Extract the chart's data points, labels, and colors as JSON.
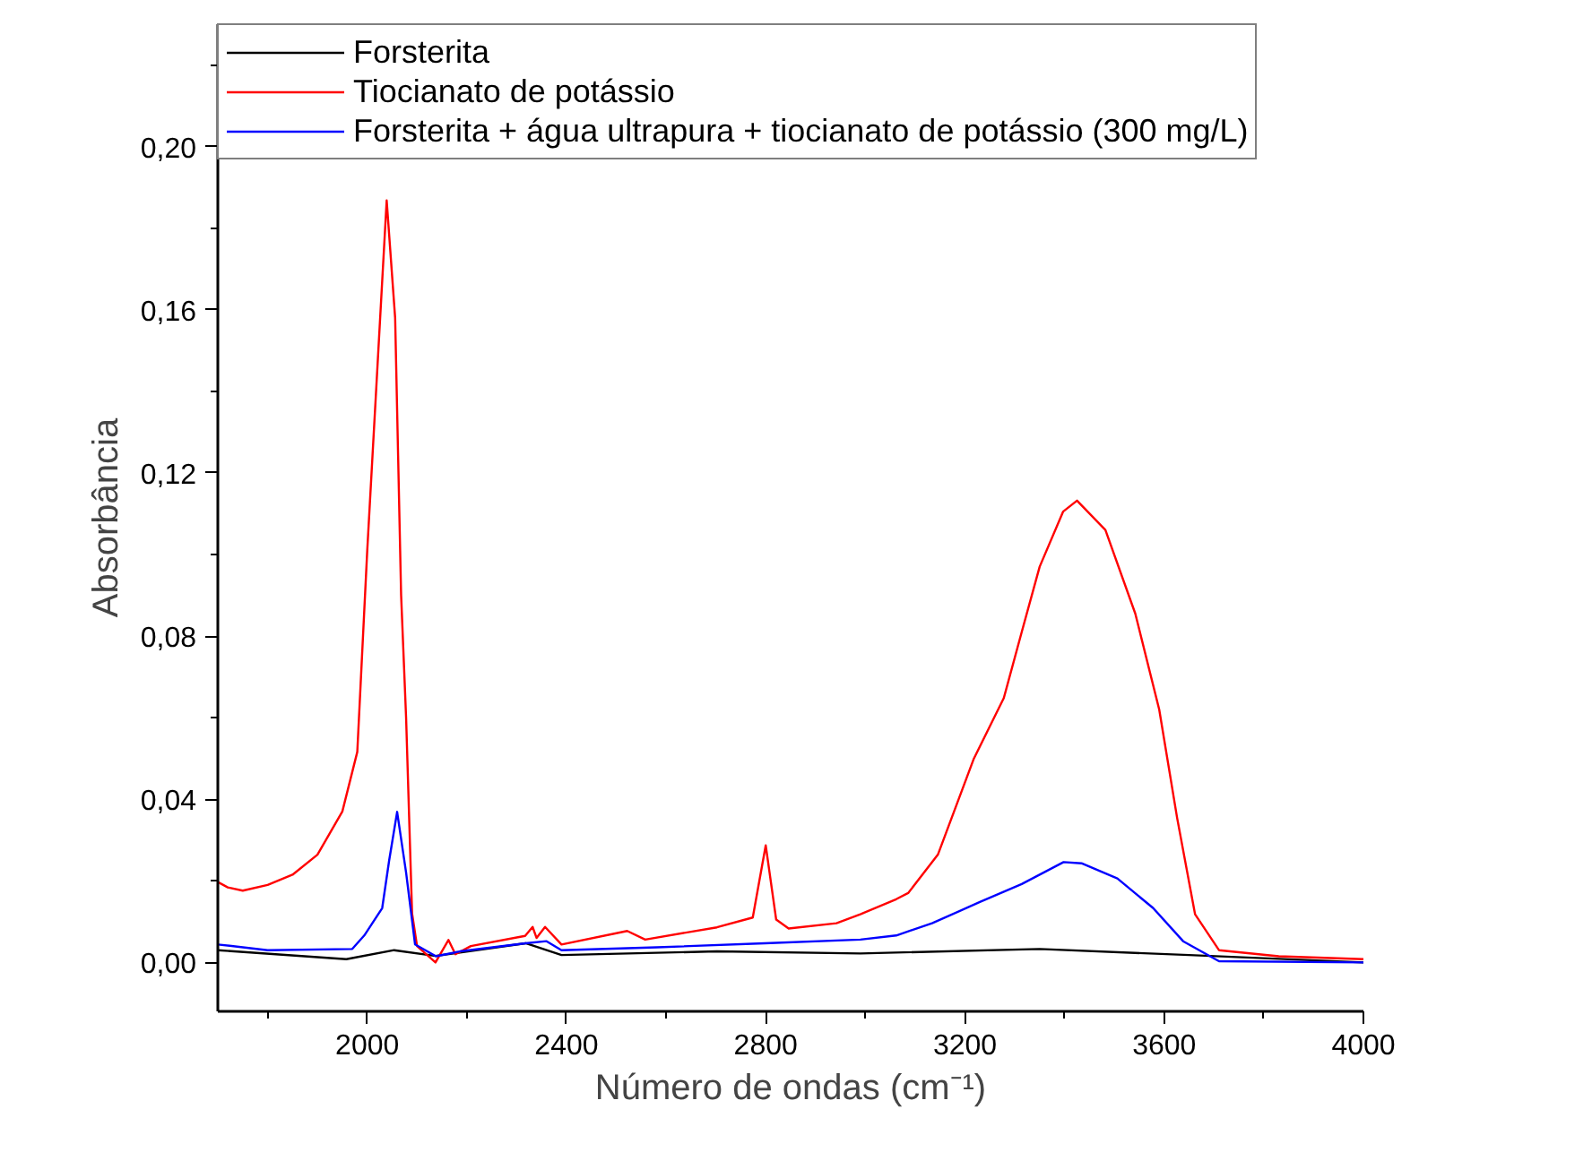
{
  "chart_data": {
    "type": "line",
    "xlabel": "Número de ondas (cm⁻¹)",
    "ylabel": "Absorbância",
    "xlim": [
      1700,
      4000
    ],
    "ylim": [
      -0.012,
      0.23
    ],
    "xticks": [
      {
        "value": 1800,
        "label": null
      },
      2000,
      {
        "value": 2200,
        "label": null
      },
      2400,
      {
        "value": 2600,
        "label": null
      },
      2800,
      {
        "value": 3000,
        "label": null
      },
      3200,
      {
        "value": 3400,
        "label": null
      },
      3600,
      {
        "value": 3800,
        "label": null
      },
      4000
    ],
    "yticks": [
      {
        "value": 0,
        "label": "0,00"
      },
      {
        "value": 0.02,
        "label": null
      },
      {
        "value": 0.04,
        "label": "0,04"
      },
      {
        "value": 0.06,
        "label": null
      },
      {
        "value": 0.08,
        "label": "0,08"
      },
      {
        "value": 0.1,
        "label": null
      },
      {
        "value": 0.12,
        "label": "0,12"
      },
      {
        "value": 0.14,
        "label": null
      },
      {
        "value": 0.16,
        "label": "0,16"
      },
      {
        "value": 0.18,
        "label": null
      },
      {
        "value": 0.2,
        "label": "0,20"
      },
      {
        "value": 0.22,
        "label": null
      }
    ],
    "grid": false,
    "legend": "top left",
    "marker": "none",
    "line_style": "solid",
    "series": [
      {
        "name": "Forsterita",
        "color": "#000000",
        "x": [
          1700,
          1958,
          2054,
          2137,
          2318,
          2390,
          2702,
          2990,
          3350,
          3650,
          4000
        ],
        "values": [
          0.003,
          0.0008,
          0.003,
          0.0016,
          0.0047,
          0.0018,
          0.0027,
          0.0022,
          0.0033,
          0.0018,
          0.0
        ]
      },
      {
        "name": "Tiocianato de potássio",
        "color": "#ff0000",
        "x": [
          1700,
          1720,
          1750,
          1800,
          1850,
          1900,
          1950,
          1980,
          2000,
          2039,
          2056,
          2068,
          2078,
          2090,
          2100,
          2137,
          2163,
          2177,
          2208,
          2317,
          2332,
          2340,
          2357,
          2390,
          2522,
          2558,
          2702,
          2774,
          2800,
          2821,
          2846,
          2942,
          2990,
          3062,
          3086,
          3146,
          3218,
          3278,
          3314,
          3350,
          3397,
          3425,
          3482,
          3542,
          3590,
          3626,
          3662,
          3710,
          3830,
          4000
        ],
        "values": [
          0.0197,
          0.0184,
          0.0176,
          0.019,
          0.0215,
          0.0264,
          0.037,
          0.0516,
          0.101,
          0.1868,
          0.158,
          0.09,
          0.06,
          0.012,
          0.004,
          0.0,
          0.0055,
          0.002,
          0.004,
          0.0065,
          0.0087,
          0.006,
          0.0087,
          0.0044,
          0.0077,
          0.0056,
          0.0086,
          0.011,
          0.0287,
          0.0105,
          0.0083,
          0.0096,
          0.0118,
          0.0155,
          0.017,
          0.0265,
          0.05,
          0.0648,
          0.081,
          0.097,
          0.1105,
          0.1132,
          0.106,
          0.0855,
          0.062,
          0.0354,
          0.0118,
          0.003,
          0.0015,
          0.0008
        ]
      },
      {
        "name": "Forsterita + água ultrapura + tiocianato de potássio (300 mg/L)",
        "color": "#0000ff",
        "x": [
          1700,
          1800,
          1970,
          1994,
          2030,
          2044,
          2060,
          2078,
          2096,
          2138,
          2186,
          2318,
          2360,
          2390,
          2582,
          2798,
          2990,
          3062,
          3134,
          3230,
          3314,
          3398,
          3434,
          3506,
          3578,
          3638,
          3710,
          4000
        ],
        "values": [
          0.0044,
          0.003,
          0.0033,
          0.0066,
          0.0133,
          0.025,
          0.0369,
          0.022,
          0.0044,
          0.0015,
          0.0027,
          0.0047,
          0.0052,
          0.003,
          0.0037,
          0.0047,
          0.0056,
          0.0066,
          0.0096,
          0.0148,
          0.0192,
          0.0246,
          0.0243,
          0.0206,
          0.0133,
          0.0052,
          0.0003,
          0.0
        ]
      }
    ]
  }
}
